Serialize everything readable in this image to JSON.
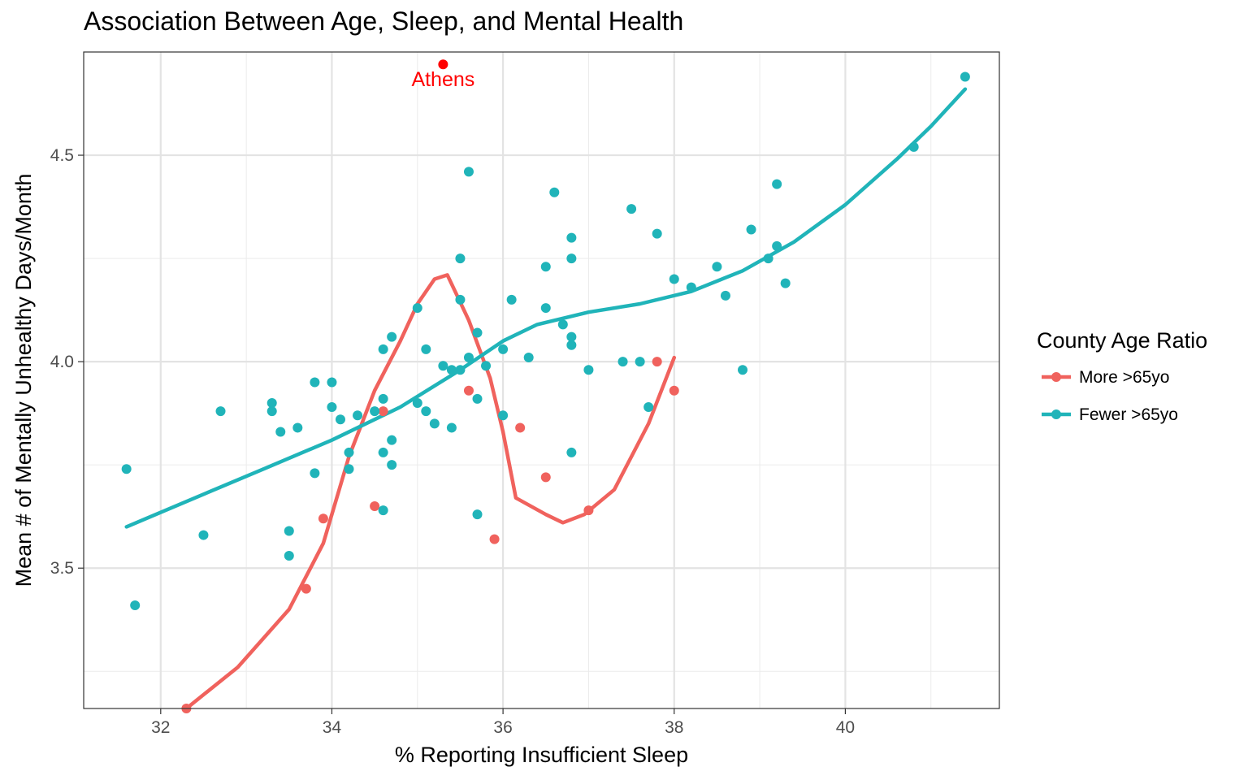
{
  "chart_data": {
    "type": "scatter",
    "title": "Association Between Age, Sleep, and Mental Health",
    "xlabel": "% Reporting Insufficient Sleep",
    "ylabel": "Mean # of Mentally Unhealthy Days/Month",
    "xlim": [
      31.1,
      41.8
    ],
    "ylim": [
      3.16,
      4.75
    ],
    "x_ticks": [
      32,
      34,
      36,
      38,
      40
    ],
    "x_tick_labels": [
      "32",
      "34",
      "36",
      "38",
      "40"
    ],
    "y_ticks": [
      3.5,
      4.0,
      4.5
    ],
    "y_tick_labels": [
      "3.5",
      "4.0",
      "4.5"
    ],
    "grid": true,
    "legend": {
      "title": "County Age Ratio",
      "position": "right"
    },
    "series": [
      {
        "name": "More >65yo",
        "color": "#F0625D",
        "points": [
          [
            32.3,
            3.16
          ],
          [
            33.7,
            3.45
          ],
          [
            33.9,
            3.62
          ],
          [
            34.5,
            3.65
          ],
          [
            34.6,
            3.88
          ],
          [
            35.6,
            3.93
          ],
          [
            35.9,
            3.57
          ],
          [
            36.2,
            3.84
          ],
          [
            36.5,
            3.72
          ],
          [
            37.0,
            3.64
          ],
          [
            37.8,
            4.0
          ],
          [
            38.0,
            3.93
          ]
        ],
        "smooth": [
          [
            32.3,
            3.16
          ],
          [
            32.9,
            3.26
          ],
          [
            33.5,
            3.4
          ],
          [
            33.9,
            3.56
          ],
          [
            34.2,
            3.77
          ],
          [
            34.5,
            3.93
          ],
          [
            34.8,
            4.05
          ],
          [
            35.0,
            4.14
          ],
          [
            35.2,
            4.2
          ],
          [
            35.35,
            4.21
          ],
          [
            35.6,
            4.1
          ],
          [
            35.85,
            3.96
          ],
          [
            36.0,
            3.83
          ],
          [
            36.15,
            3.67
          ],
          [
            36.5,
            3.63
          ],
          [
            36.7,
            3.61
          ],
          [
            36.95,
            3.63
          ],
          [
            37.3,
            3.69
          ],
          [
            37.7,
            3.85
          ],
          [
            38.0,
            4.01
          ]
        ]
      },
      {
        "name": "Fewer >65yo",
        "color": "#20B4B9",
        "points": [
          [
            31.6,
            3.74
          ],
          [
            31.7,
            3.41
          ],
          [
            32.5,
            3.58
          ],
          [
            32.7,
            3.88
          ],
          [
            33.3,
            3.9
          ],
          [
            33.3,
            3.88
          ],
          [
            33.4,
            3.83
          ],
          [
            33.5,
            3.59
          ],
          [
            33.5,
            3.53
          ],
          [
            33.6,
            3.84
          ],
          [
            33.8,
            3.95
          ],
          [
            33.8,
            3.73
          ],
          [
            34.0,
            3.95
          ],
          [
            34.0,
            3.89
          ],
          [
            34.1,
            3.86
          ],
          [
            34.2,
            3.78
          ],
          [
            34.2,
            3.74
          ],
          [
            34.3,
            3.87
          ],
          [
            34.5,
            3.88
          ],
          [
            34.6,
            4.03
          ],
          [
            34.6,
            3.91
          ],
          [
            34.6,
            3.78
          ],
          [
            34.6,
            3.64
          ],
          [
            34.7,
            4.06
          ],
          [
            34.7,
            3.81
          ],
          [
            34.7,
            3.75
          ],
          [
            35.0,
            4.13
          ],
          [
            35.0,
            3.9
          ],
          [
            35.1,
            4.03
          ],
          [
            35.1,
            3.88
          ],
          [
            35.2,
            3.85
          ],
          [
            35.3,
            3.99
          ],
          [
            35.4,
            3.98
          ],
          [
            35.4,
            3.84
          ],
          [
            35.5,
            4.25
          ],
          [
            35.5,
            4.15
          ],
          [
            35.5,
            3.98
          ],
          [
            35.6,
            4.46
          ],
          [
            35.6,
            4.01
          ],
          [
            35.7,
            4.07
          ],
          [
            35.7,
            3.91
          ],
          [
            35.7,
            3.63
          ],
          [
            35.8,
            3.99
          ],
          [
            36.0,
            4.03
          ],
          [
            36.0,
            3.87
          ],
          [
            36.1,
            4.15
          ],
          [
            36.3,
            4.01
          ],
          [
            36.5,
            4.23
          ],
          [
            36.5,
            4.13
          ],
          [
            36.6,
            4.41
          ],
          [
            36.7,
            4.09
          ],
          [
            36.8,
            4.3
          ],
          [
            36.8,
            4.25
          ],
          [
            36.8,
            4.06
          ],
          [
            36.8,
            4.04
          ],
          [
            36.8,
            3.78
          ],
          [
            37.0,
            3.98
          ],
          [
            37.4,
            4.0
          ],
          [
            37.5,
            4.37
          ],
          [
            37.6,
            4.0
          ],
          [
            37.7,
            3.89
          ],
          [
            37.8,
            4.31
          ],
          [
            38.0,
            4.2
          ],
          [
            38.2,
            4.18
          ],
          [
            38.5,
            4.23
          ],
          [
            38.6,
            4.16
          ],
          [
            38.8,
            3.98
          ],
          [
            38.9,
            4.32
          ],
          [
            39.1,
            4.25
          ],
          [
            39.2,
            4.43
          ],
          [
            39.2,
            4.28
          ],
          [
            39.3,
            4.19
          ],
          [
            40.8,
            4.52
          ],
          [
            41.4,
            4.69
          ]
        ],
        "smooth": [
          [
            31.6,
            3.6
          ],
          [
            32.4,
            3.67
          ],
          [
            33.2,
            3.74
          ],
          [
            34.0,
            3.81
          ],
          [
            34.8,
            3.89
          ],
          [
            35.5,
            3.98
          ],
          [
            36.0,
            4.05
          ],
          [
            36.4,
            4.09
          ],
          [
            37.0,
            4.12
          ],
          [
            37.6,
            4.14
          ],
          [
            38.2,
            4.17
          ],
          [
            38.8,
            4.22
          ],
          [
            39.4,
            4.29
          ],
          [
            40.0,
            4.38
          ],
          [
            40.6,
            4.49
          ],
          [
            41.0,
            4.57
          ],
          [
            41.4,
            4.66
          ]
        ]
      }
    ],
    "highlight": {
      "label": "Athens",
      "x": 35.3,
      "y": 4.72,
      "color": "#FF0000"
    }
  }
}
